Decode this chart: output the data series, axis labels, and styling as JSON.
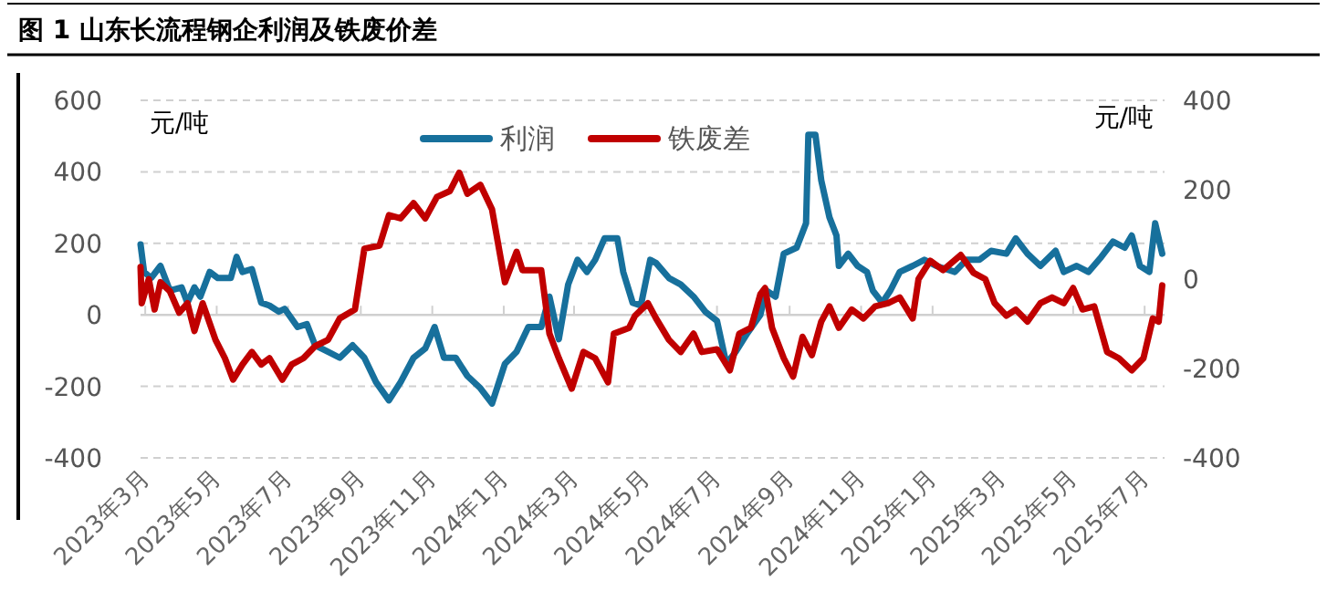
{
  "chart_data": {
    "type": "line",
    "title": "图 1  山东长流程钢企利润及铁废价差",
    "ylabel": "元/吨",
    "y2label": "元/吨",
    "xlim": [
      "2023-02-25",
      "2025-07-18"
    ],
    "xticks": [
      {
        "value": "2023-03-01",
        "label": "2023年3月"
      },
      {
        "value": "2023-05-01",
        "label": "2023年5月"
      },
      {
        "value": "2023-07-01",
        "label": "2023年7月"
      },
      {
        "value": "2023-09-01",
        "label": "2023年9月"
      },
      {
        "value": "2023-11-01",
        "label": "2023年11月"
      },
      {
        "value": "2024-01-01",
        "label": "2024年1月"
      },
      {
        "value": "2024-03-01",
        "label": "2024年3月"
      },
      {
        "value": "2024-05-01",
        "label": "2024年5月"
      },
      {
        "value": "2024-07-01",
        "label": "2024年7月"
      },
      {
        "value": "2024-09-01",
        "label": "2024年9月"
      },
      {
        "value": "2024-11-01",
        "label": "2024年11月"
      },
      {
        "value": "2025-01-01",
        "label": "2025年1月"
      },
      {
        "value": "2025-03-01",
        "label": "2025年3月"
      },
      {
        "value": "2025-05-01",
        "label": "2025年5月"
      },
      {
        "value": "2025-07-01",
        "label": "2025年7月"
      }
    ],
    "ylim": [
      -400,
      600
    ],
    "yticks": [
      -400,
      -200,
      0,
      200,
      400,
      600
    ],
    "y2lim": [
      -400,
      400
    ],
    "y2ticks": [
      -400,
      -200,
      0,
      200,
      400
    ],
    "grid": "y",
    "legend": "top",
    "line_style": "solid",
    "marker": "none",
    "series": [
      {
        "name": "利润",
        "color": "#17709c",
        "axis": "y",
        "x": [
          "2023-02-25",
          "2023-02-28",
          "2023-03-06",
          "2023-03-14",
          "2023-03-22",
          "2023-04-01",
          "2023-04-06",
          "2023-04-12",
          "2023-04-17",
          "2023-04-25",
          "2023-05-02",
          "2023-05-13",
          "2023-05-18",
          "2023-05-23",
          "2023-05-31",
          "2023-06-08",
          "2023-06-15",
          "2023-06-23",
          "2023-06-28",
          "2023-07-09",
          "2023-07-17",
          "2023-07-24",
          "2023-08-04",
          "2023-08-14",
          "2023-08-25",
          "2023-09-04",
          "2023-09-14",
          "2023-09-25",
          "2023-10-05",
          "2023-10-16",
          "2023-10-26",
          "2023-11-03",
          "2023-11-11",
          "2023-11-21",
          "2023-12-01",
          "2023-12-12",
          "2023-12-22",
          "2024-01-02",
          "2024-01-12",
          "2024-01-22",
          "2024-02-02",
          "2024-02-09",
          "2024-02-17",
          "2024-02-25",
          "2024-03-04",
          "2024-03-12",
          "2024-03-19",
          "2024-03-27",
          "2024-04-07",
          "2024-04-12",
          "2024-04-20",
          "2024-04-27",
          "2024-05-05",
          "2024-05-10",
          "2024-05-21",
          "2024-05-31",
          "2024-06-11",
          "2024-06-21",
          "2024-07-01",
          "2024-07-09",
          "2024-07-17",
          "2024-07-27",
          "2024-08-07",
          "2024-08-12",
          "2024-08-20",
          "2024-08-27",
          "2024-09-07",
          "2024-09-15",
          "2024-09-17",
          "2024-09-23",
          "2024-09-28",
          "2024-10-05",
          "2024-10-11",
          "2024-10-13",
          "2024-10-21",
          "2024-10-29",
          "2024-11-06",
          "2024-11-11",
          "2024-11-19",
          "2024-11-26",
          "2024-12-04",
          "2024-12-15",
          "2024-12-25",
          "2025-01-04",
          "2025-01-20",
          "2025-01-30",
          "2025-02-10",
          "2025-02-20",
          "2025-03-05",
          "2025-03-13",
          "2025-03-23",
          "2025-04-03",
          "2025-04-16",
          "2025-04-23",
          "2025-05-04",
          "2025-05-14",
          "2025-05-25",
          "2025-06-04",
          "2025-06-14",
          "2025-06-20",
          "2025-06-27",
          "2025-07-05",
          "2025-07-10",
          "2025-07-16"
        ],
        "values": [
          197,
          120,
          103,
          137,
          68,
          77,
          34,
          77,
          51,
          120,
          103,
          103,
          162,
          120,
          128,
          34,
          26,
          9,
          17,
          -34,
          -26,
          -85,
          -103,
          -120,
          -85,
          -120,
          -188,
          -239,
          -188,
          -120,
          -94,
          -34,
          -120,
          -120,
          -171,
          -205,
          -248,
          -137,
          -103,
          -34,
          -34,
          51,
          -68,
          85,
          154,
          120,
          154,
          214,
          214,
          120,
          34,
          26,
          154,
          145,
          103,
          85,
          51,
          9,
          -17,
          -137,
          -103,
          -51,
          0,
          68,
          51,
          171,
          188,
          256,
          504,
          504,
          376,
          273,
          222,
          137,
          171,
          137,
          120,
          68,
          34,
          68,
          120,
          137,
          154,
          137,
          120,
          154,
          154,
          179,
          171,
          214,
          171,
          137,
          179,
          120,
          137,
          120,
          162,
          205,
          188,
          222,
          137,
          120,
          256,
          171
        ]
      },
      {
        "name": "铁废差",
        "color": "#c00000",
        "axis": "y2",
        "x": [
          "2023-02-25",
          "2023-02-26",
          "2023-03-04",
          "2023-03-09",
          "2023-03-14",
          "2023-03-22",
          "2023-03-30",
          "2023-04-06",
          "2023-04-12",
          "2023-04-19",
          "2023-04-30",
          "2023-05-08",
          "2023-05-15",
          "2023-05-23",
          "2023-05-31",
          "2023-06-08",
          "2023-06-15",
          "2023-06-26",
          "2023-07-04",
          "2023-07-14",
          "2023-07-24",
          "2023-08-04",
          "2023-08-14",
          "2023-08-27",
          "2023-09-04",
          "2023-09-17",
          "2023-09-25",
          "2023-10-05",
          "2023-10-16",
          "2023-10-26",
          "2023-11-05",
          "2023-11-16",
          "2023-11-24",
          "2023-12-01",
          "2023-12-12",
          "2023-12-22",
          "2024-01-02",
          "2024-01-12",
          "2024-01-17",
          "2024-02-02",
          "2024-02-09",
          "2024-02-17",
          "2024-02-28",
          "2024-03-09",
          "2024-03-19",
          "2024-03-30",
          "2024-04-04",
          "2024-04-17",
          "2024-04-22",
          "2024-05-03",
          "2024-05-10",
          "2024-05-21",
          "2024-05-31",
          "2024-06-11",
          "2024-06-18",
          "2024-07-01",
          "2024-07-12",
          "2024-07-20",
          "2024-07-30",
          "2024-08-07",
          "2024-08-11",
          "2024-08-17",
          "2024-08-27",
          "2024-09-04",
          "2024-09-12",
          "2024-09-20",
          "2024-09-28",
          "2024-10-05",
          "2024-10-13",
          "2024-10-24",
          "2024-11-03",
          "2024-11-13",
          "2024-11-24",
          "2024-12-04",
          "2024-12-15",
          "2024-12-20",
          "2024-12-30",
          "2025-01-10",
          "2025-01-25",
          "2025-02-05",
          "2025-02-15",
          "2025-02-23",
          "2025-03-05",
          "2025-03-13",
          "2025-03-23",
          "2025-04-03",
          "2025-04-13",
          "2025-04-23",
          "2025-05-01",
          "2025-05-09",
          "2025-05-19",
          "2025-05-30",
          "2025-06-09",
          "2025-06-20",
          "2025-06-30",
          "2025-07-08",
          "2025-07-13",
          "2025-07-16"
        ],
        "values": [
          27,
          -54,
          0,
          -68,
          -7,
          -27,
          -75,
          -54,
          -116,
          -54,
          -136,
          -177,
          -225,
          -191,
          -163,
          -191,
          -177,
          -225,
          -191,
          -177,
          -150,
          -136,
          -88,
          -68,
          68,
          75,
          143,
          136,
          170,
          136,
          184,
          197,
          238,
          191,
          211,
          156,
          -7,
          61,
          20,
          20,
          -122,
          -177,
          -245,
          -163,
          -177,
          -231,
          -122,
          -109,
          -82,
          -54,
          -88,
          -136,
          -163,
          -122,
          -163,
          -157,
          -204,
          -122,
          -109,
          -34,
          -20,
          -109,
          -177,
          -218,
          -129,
          -170,
          -95,
          -61,
          -109,
          -68,
          -88,
          -61,
          -54,
          -41,
          -88,
          0,
          41,
          20,
          54,
          14,
          0,
          -54,
          -82,
          -68,
          -95,
          -54,
          -41,
          -54,
          -20,
          -68,
          -61,
          -163,
          -177,
          -204,
          -177,
          -88,
          -95,
          -14
        ]
      }
    ]
  }
}
